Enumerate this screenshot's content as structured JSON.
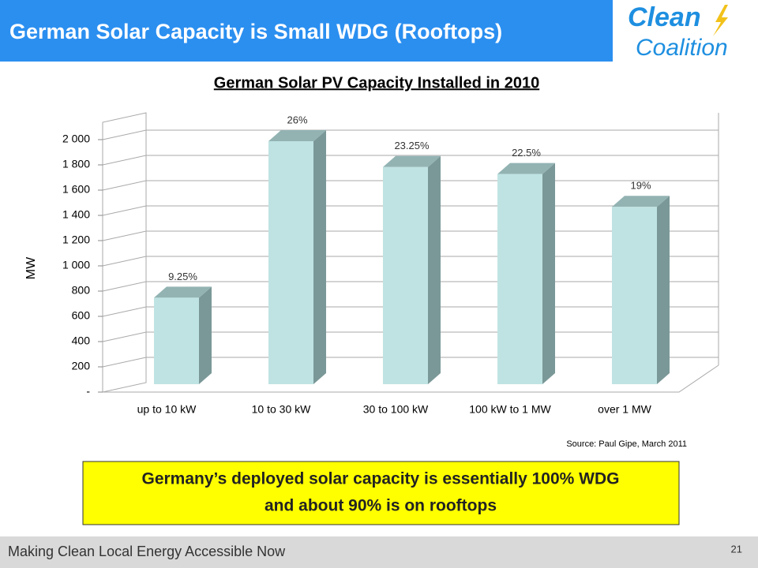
{
  "header": {
    "title": "German Solar Capacity is Small WDG (Rooftops)",
    "logo_top": "Clean",
    "logo_bottom": "Coalition"
  },
  "chart_data": {
    "type": "bar3d",
    "title": "German Solar PV Capacity Installed in 2010",
    "categories": [
      "up to 10 kW",
      "10 to 30 kW",
      "30 to 100 kW",
      "100 kW to 1 MW",
      "over 1 MW"
    ],
    "values": [
      685,
      1925,
      1720,
      1665,
      1405
    ],
    "annotations": [
      "9.25%",
      "26%",
      "23.25%",
      "22.5%",
      "19%"
    ],
    "ylabel": "MW",
    "ylim": [
      0,
      2000
    ],
    "yticks": [
      {
        "value": 0,
        "label": "-"
      },
      200,
      400,
      600,
      800,
      {
        "value": 1000,
        "label": "1 000"
      },
      {
        "value": 1200,
        "label": "1 200"
      },
      {
        "value": 1400,
        "label": "1 400"
      },
      {
        "value": 1600,
        "label": "1 600"
      },
      {
        "value": 1800,
        "label": "1 800"
      },
      {
        "value": 2000,
        "label": "2 000"
      }
    ],
    "grid": true,
    "color": "#bfe3e3",
    "side_color": "#7b9898",
    "top_color": "#93b3b3"
  },
  "source": "Source: Paul Gipe, March 2011",
  "callout": [
    "Germany’s deployed solar capacity is essentially 100% WDG",
    "and about 90% is on rooftops"
  ],
  "footer": {
    "text": "Making Clean Local Energy Accessible Now",
    "page": 21
  }
}
